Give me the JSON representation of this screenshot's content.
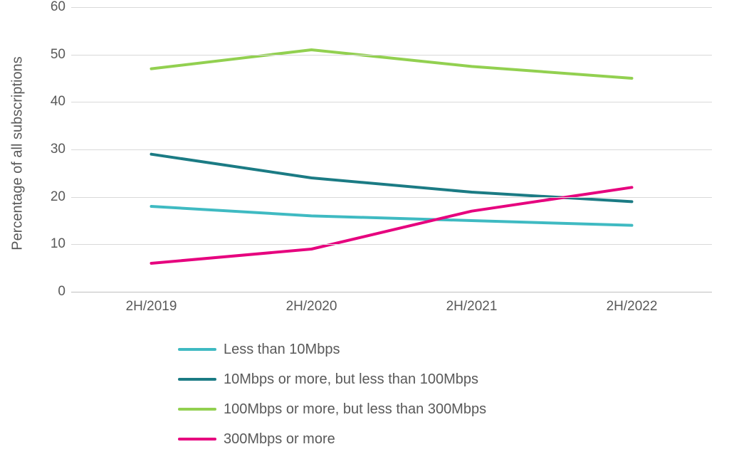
{
  "chart": {
    "type": "line",
    "y_axis_title": "Percentage of all subscriptions",
    "title_fontsize": 20,
    "label_fontsize": 19,
    "background_color": "#ffffff",
    "grid_color": "#d9d9d9",
    "axis_color": "#bfbfbf",
    "text_color": "#595959",
    "ylim": [
      0,
      60
    ],
    "ytick_step": 10,
    "yticks": [
      0,
      10,
      20,
      30,
      40,
      50,
      60
    ],
    "categories": [
      "2H/2019",
      "2H/2020",
      "2H/2021",
      "2H/2022"
    ],
    "line_width": 4,
    "series": [
      {
        "id": "lt10",
        "label": "Less than 10Mbps",
        "color": "#3fbac2",
        "values": [
          18,
          16,
          15,
          14
        ]
      },
      {
        "id": "10to100",
        "label": "10Mbps or more, but less than 100Mbps",
        "color": "#1b7b84",
        "values": [
          29,
          24,
          21,
          19
        ]
      },
      {
        "id": "100to300",
        "label": "100Mbps or more, but less than 300Mbps",
        "color": "#92d050",
        "values": [
          47,
          51,
          47.5,
          45
        ]
      },
      {
        "id": "gte300",
        "label": "300Mbps or more",
        "color": "#e6007e",
        "values": [
          6,
          9,
          17,
          22
        ]
      }
    ]
  }
}
